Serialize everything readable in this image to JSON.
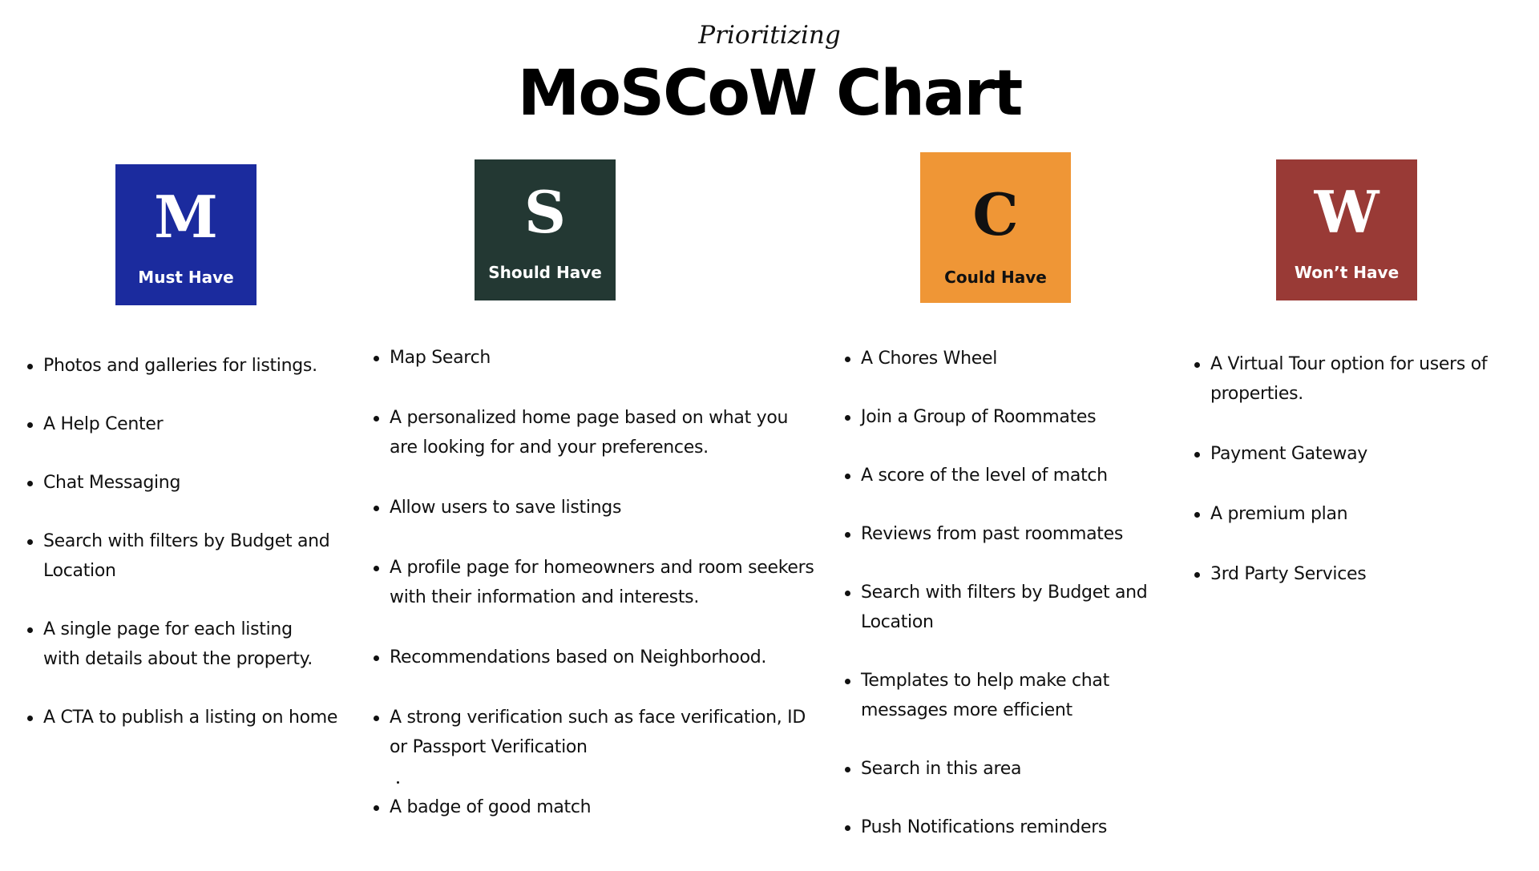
{
  "header": {
    "subtitle": "Prioritizing",
    "title": "MoSCoW Chart"
  },
  "colors": {
    "must": "#1b2b9e",
    "should": "#233833",
    "could": "#ef9636",
    "wont": "#993a36"
  },
  "columns": [
    {
      "key": "must",
      "letter": "M",
      "label": "Must Have",
      "items": [
        "Photos and galleries for listings.",
        "A Help Center",
        "Chat Messaging",
        "Search with filters by Budget and Location",
        "A single page for each listing with details about the property.",
        "A CTA to publish a listing on home"
      ]
    },
    {
      "key": "should",
      "letter": "S",
      "label": "Should Have",
      "items": [
        "Map Search",
        "A personalized home page based on what you are looking for and your preferences.",
        "Allow users to save listings",
        "A profile page for homeowners and room seekers with their information and interests.",
        "Recommendations based on Neighborhood.",
        "A strong verification such as face verification, ID or Passport Verification",
        "A badge of good match"
      ]
    },
    {
      "key": "could",
      "letter": "C",
      "label": "Could Have",
      "items": [
        "A Chores Wheel",
        "Join a Group of Roommates",
        "A score of the level of match",
        "Reviews from past roommates",
        "Search with filters by Budget and Location",
        "Templates to help make chat messages more efficient",
        "Search in this area",
        "Push Notifications reminders"
      ]
    },
    {
      "key": "wont",
      "letter": "W",
      "label": "Won’t Have",
      "items": [
        "A Virtual Tour option for users of properties.",
        "Payment Gateway",
        "A premium plan",
        "3rd Party Services"
      ]
    }
  ]
}
